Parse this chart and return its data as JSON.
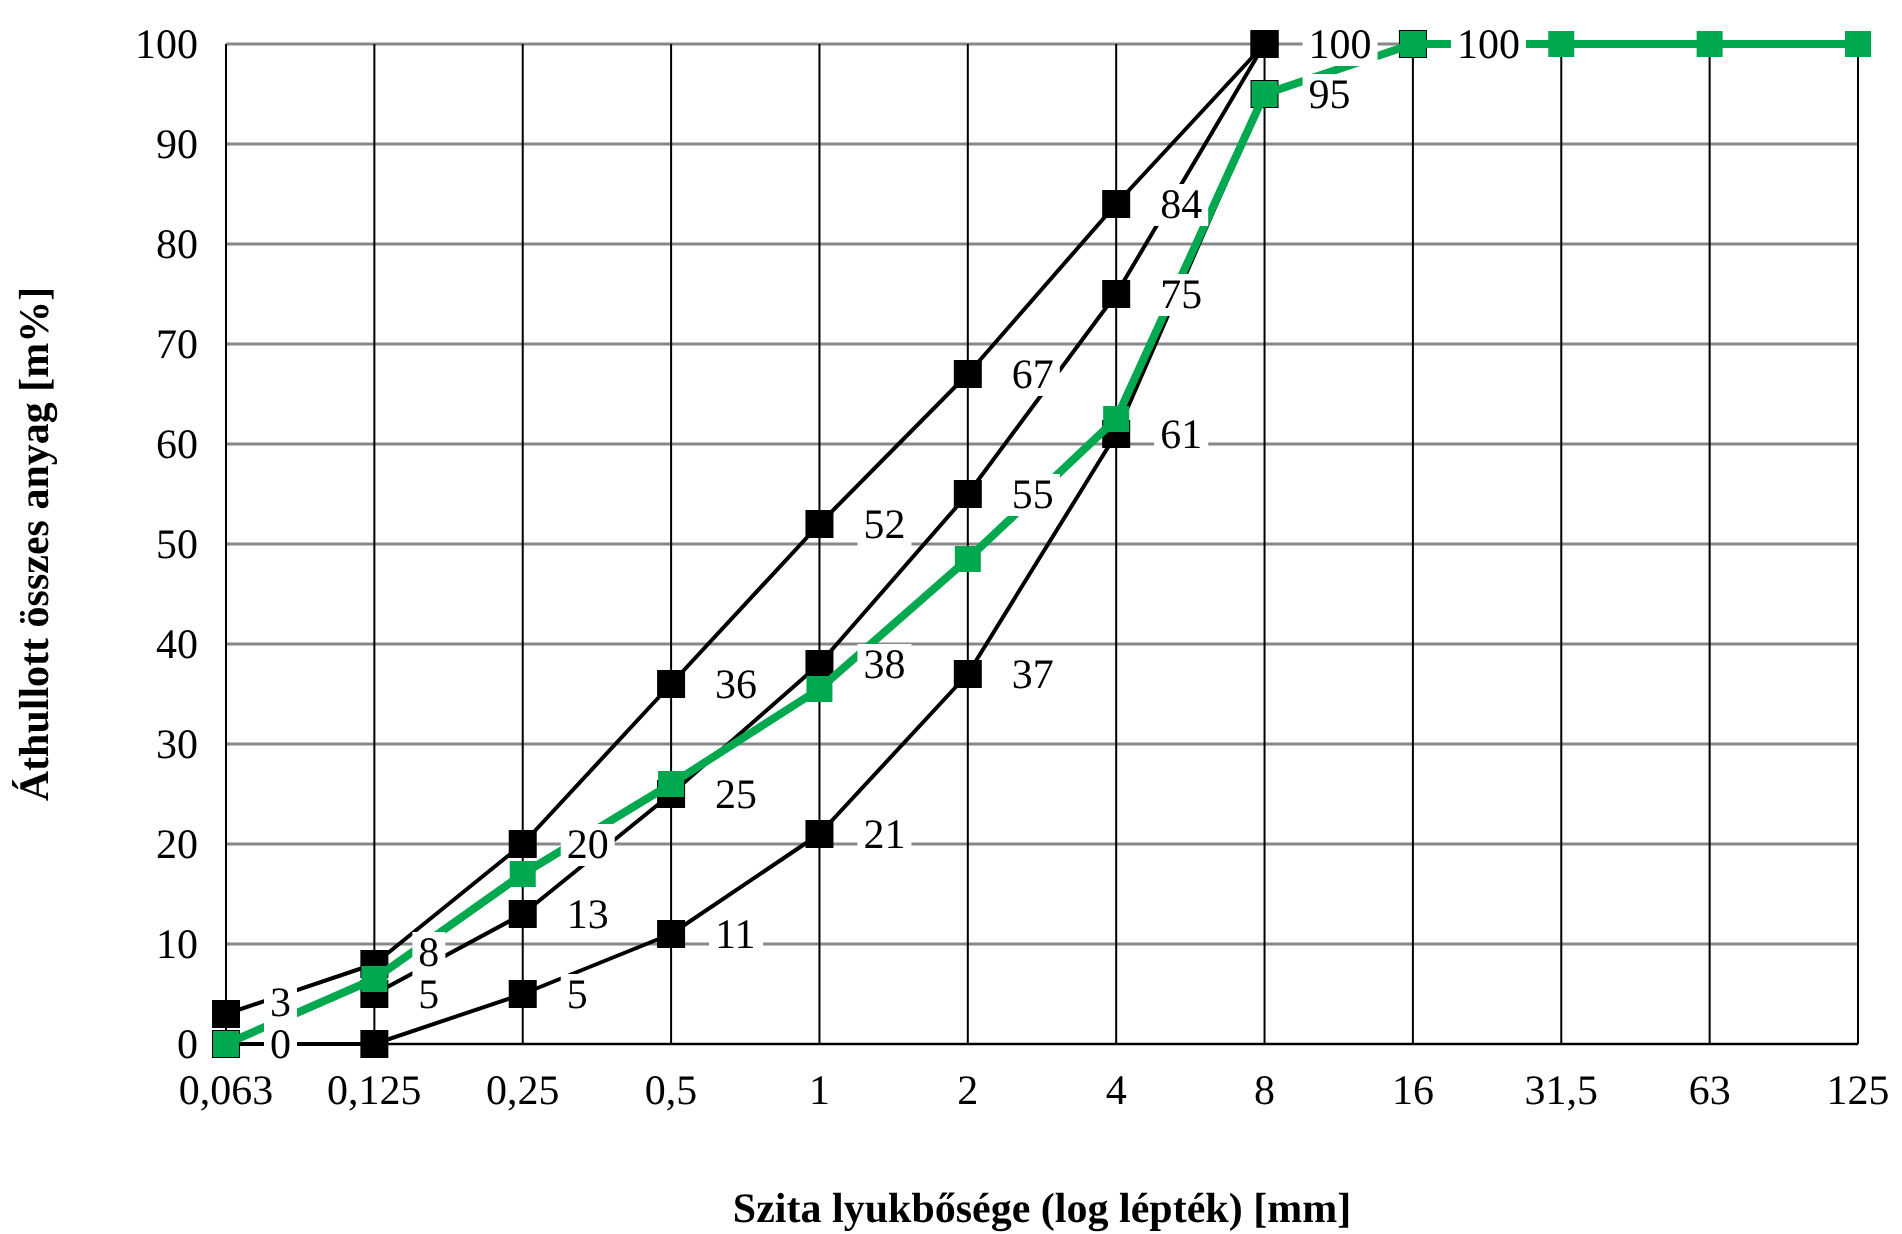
{
  "chart_data": {
    "type": "line",
    "xlabel": "Szita lyukbősége (log lépték) [mm]",
    "ylabel": "Áthullott összes anyag [m%]",
    "categories": [
      "0,063",
      "0,125",
      "0,25",
      "0,5",
      "1",
      "2",
      "4",
      "8",
      "16",
      "31,5",
      "63",
      "125"
    ],
    "ylim": [
      0,
      100
    ],
    "yticks": [
      0,
      10,
      20,
      30,
      40,
      50,
      60,
      70,
      80,
      90,
      100
    ],
    "grid": true,
    "marker": "square",
    "line_style": "solid",
    "series": [
      {
        "color": "#000000",
        "values": [
          3,
          8,
          20,
          36,
          52,
          67,
          84,
          100,
          null,
          null,
          null,
          null
        ],
        "value_labels": [
          "3",
          "8",
          "20",
          "36",
          "52",
          "67",
          "84",
          "100",
          null,
          null,
          null,
          null
        ]
      },
      {
        "color": "#000000",
        "values": [
          null,
          5,
          13,
          25,
          38,
          55,
          75,
          100,
          null,
          null,
          null,
          null
        ],
        "value_labels": [
          null,
          "5",
          "13",
          "25",
          "38",
          "55",
          "75",
          null,
          null,
          null,
          null,
          null
        ]
      },
      {
        "color": "#000000",
        "values": [
          0,
          0,
          5,
          11,
          21,
          37,
          61,
          95,
          100,
          null,
          null,
          null
        ],
        "value_labels": [
          "0",
          null,
          "5",
          "11",
          "21",
          "37",
          "61",
          "95",
          "100",
          null,
          null,
          null
        ]
      },
      {
        "color": "#00a84f",
        "values": [
          0,
          6.5,
          17,
          26,
          35.5,
          48.5,
          62.5,
          95,
          100,
          100,
          100,
          100
        ]
      }
    ]
  }
}
